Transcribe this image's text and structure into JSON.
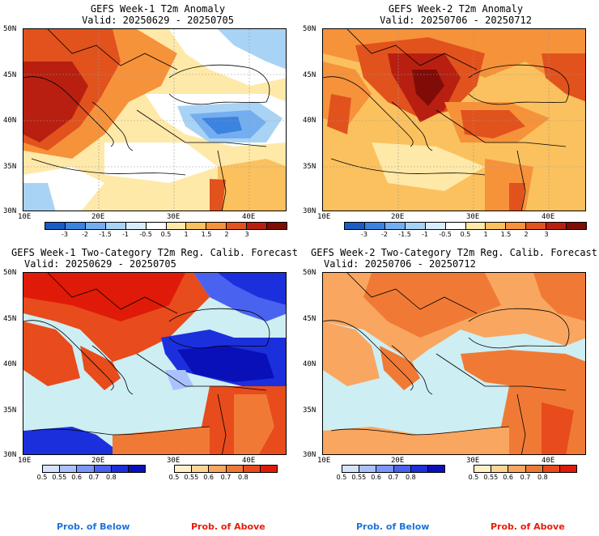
{
  "panels": [
    {
      "title": "GEFS Week-1 T2m Anomaly",
      "valid": "Valid: 20250629 - 20250705"
    },
    {
      "title": "GEFS Week-2 T2m Anomaly",
      "valid": "Valid: 20250706 - 20250712"
    },
    {
      "title": "GEFS Week-1 Two-Category T2m Reg. Calib. Forecast",
      "valid": "Valid: 20250629 - 20250705"
    },
    {
      "title": "GEFS Week-2 Two-Category T2m Reg. Calib. Forecast",
      "valid": "Valid: 20250706 - 20250712"
    }
  ],
  "axes": {
    "lat_labels": [
      "50N",
      "45N",
      "40N",
      "35N",
      "30N"
    ],
    "lon_labels": [
      "10E",
      "20E",
      "30E",
      "40E"
    ]
  },
  "anomaly_colorbar": {
    "labels": [
      "-3",
      "-2",
      "-1.5",
      "-1",
      "-0.5",
      "0.5",
      "1",
      "1.5",
      "2",
      "3"
    ],
    "colors": [
      "#1a5cc6",
      "#3b83e0",
      "#74aef0",
      "#a9d3f5",
      "#d9eefb",
      "#ffffff",
      "#ffe9a8",
      "#fbc15e",
      "#f6923a",
      "#e2521d",
      "#b81f10",
      "#7f0c07"
    ]
  },
  "prob_colorbar_below": {
    "labels": [
      "0.5",
      "0.55",
      "0.6",
      "0.7",
      "0.8"
    ],
    "colors": [
      "#d6e3ff",
      "#a9c2ff",
      "#7b96ff",
      "#4a62f0",
      "#1c2fdc",
      "#0a10b8"
    ]
  },
  "prob_colorbar_above": {
    "labels": [
      "0.5",
      "0.55",
      "0.6",
      "0.7",
      "0.8"
    ],
    "colors": [
      "#fff0c8",
      "#fdd495",
      "#f9a660",
      "#f07a35",
      "#e84b1c",
      "#e01a08"
    ]
  },
  "legend": {
    "below_label": "Prob. of Below",
    "below_color": "#1e73d8",
    "above_label": "Prob. of Above",
    "above_color": "#e81e0a"
  },
  "colors": {
    "sea": "#cdeef3",
    "land_white": "#ffffff",
    "border": "#000000"
  }
}
